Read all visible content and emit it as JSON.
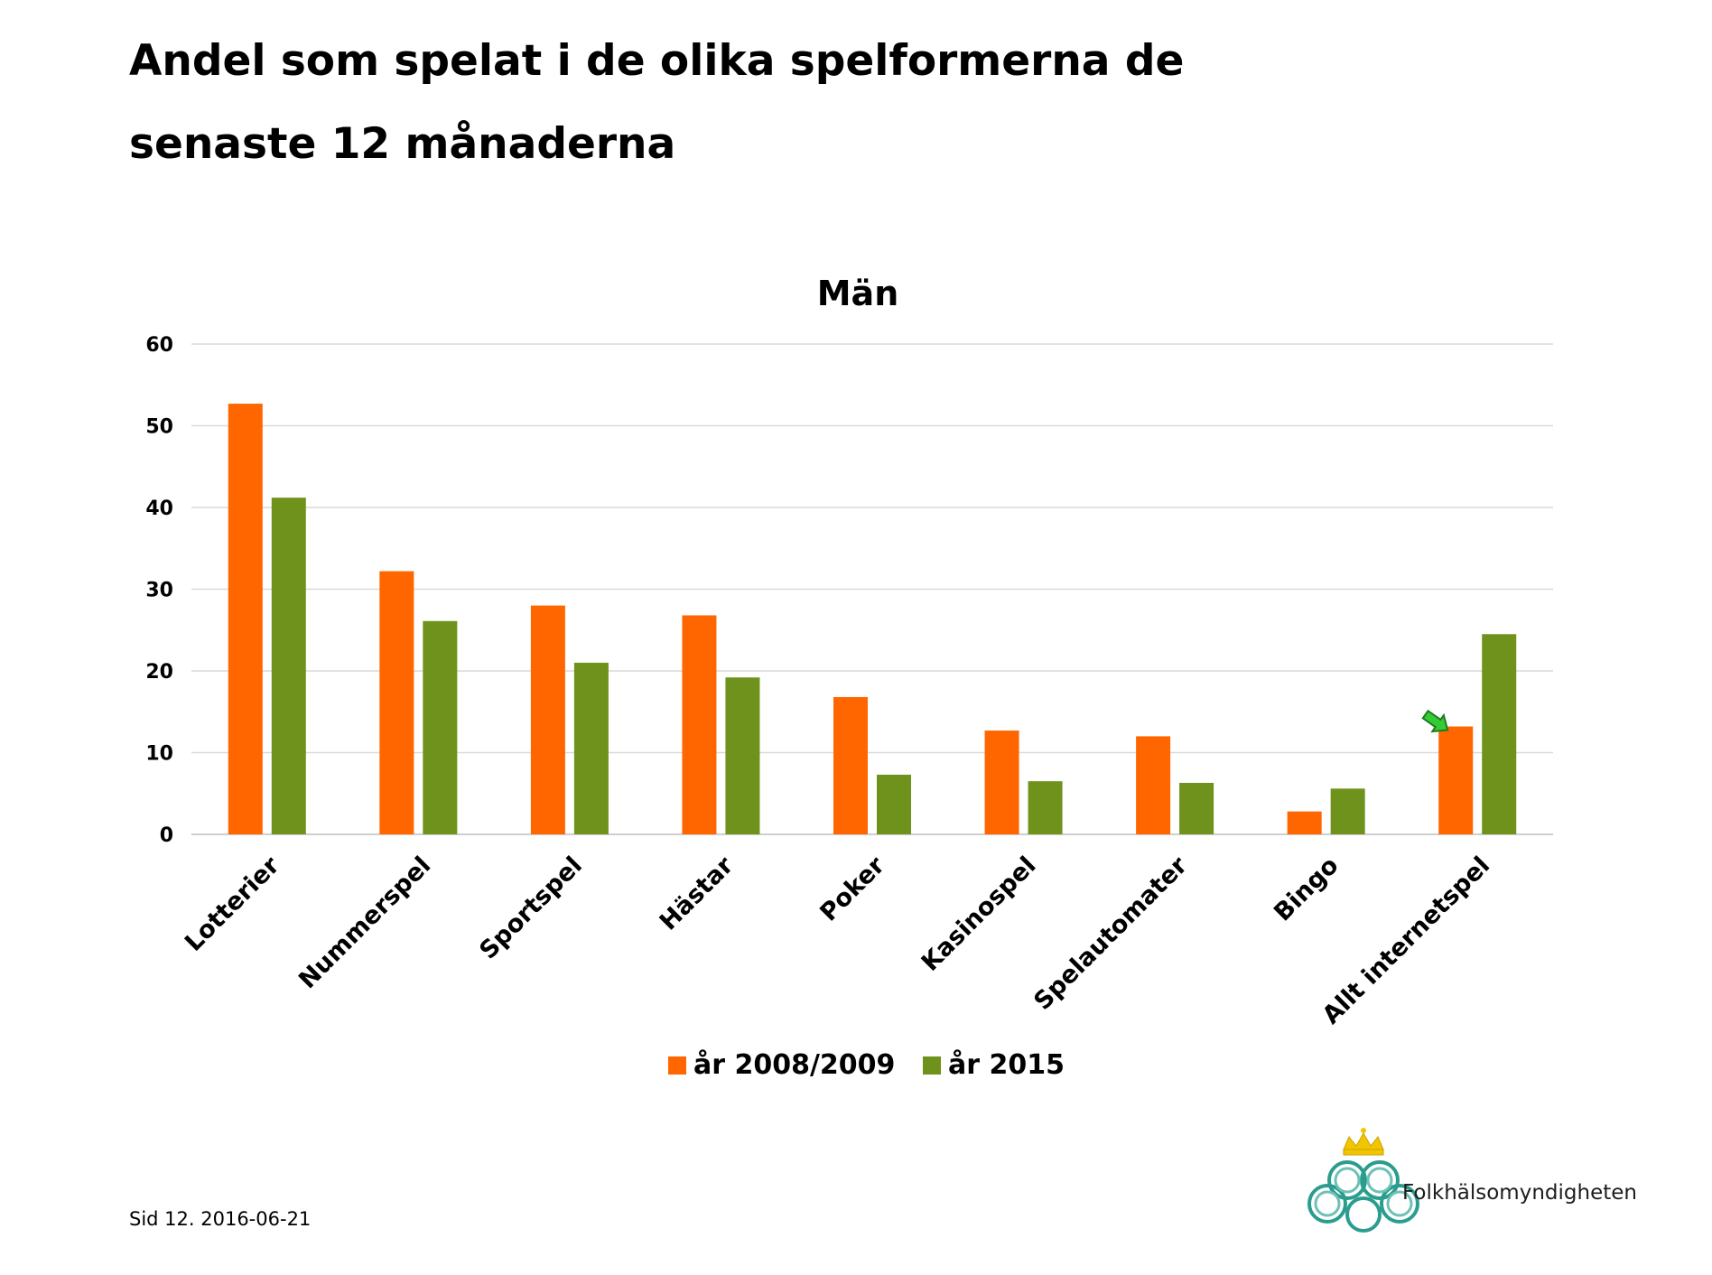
{
  "slide": {
    "title_line1": "Andel som spelat i de olika spelformerna de",
    "title_line2": "senaste 12 månaderna",
    "footer": "Sid 12. 2016-06-21",
    "logo_text": "Folkhälsomyndigheten"
  },
  "chart_data": {
    "type": "bar",
    "title": "Män",
    "categories": [
      "Lotterier",
      "Nummerspel",
      "Sportspel",
      "Hästar",
      "Poker",
      "Kasinospel",
      "Spelautomater",
      "Bingo",
      "Allt internetspel"
    ],
    "series": [
      {
        "name": "år 2008/2009",
        "color": "#FF6600",
        "values": [
          52.7,
          32.2,
          28.0,
          26.8,
          16.8,
          12.7,
          12.0,
          2.8,
          13.2
        ]
      },
      {
        "name": "år 2015",
        "color": "#6E921B",
        "values": [
          41.2,
          26.1,
          21.0,
          19.2,
          7.3,
          6.5,
          6.3,
          5.6,
          24.5
        ]
      }
    ],
    "ylim": [
      0,
      60
    ],
    "yticks": [
      0,
      10,
      20,
      30,
      40,
      50,
      60
    ],
    "grid": true,
    "legend_position": "bottom",
    "annotation_arrow": {
      "color": "#33CC33",
      "category": "Allt internetspel"
    }
  }
}
